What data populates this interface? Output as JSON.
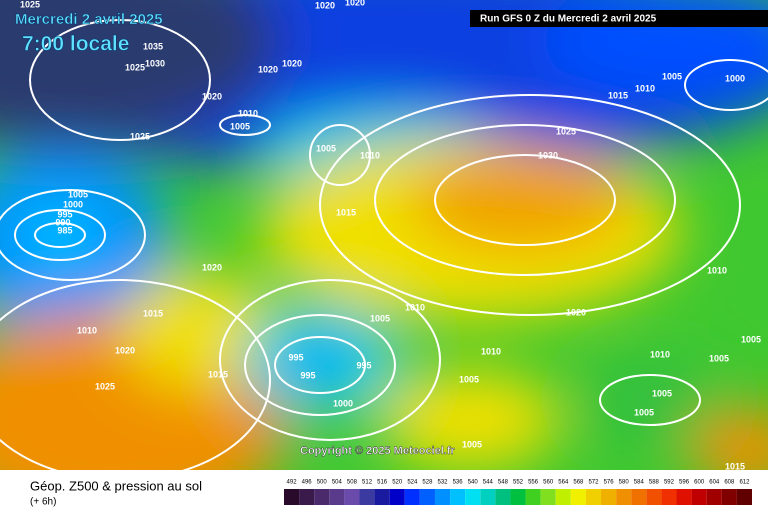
{
  "header": {
    "date": "Mercredi 2 avril 2025",
    "time": "7:00 locale",
    "run": "Run GFS 0 Z du Mercredi 2 avril 2025"
  },
  "map": {
    "isobar_labels": [
      1025,
      1020,
      1020,
      1035,
      1030,
      1025,
      1020,
      1020,
      1020,
      1010,
      1005,
      1025,
      1005,
      1010,
      1005,
      1000,
      995,
      990,
      985,
      1015,
      1020,
      1015,
      1010,
      1020,
      1025,
      1015,
      995,
      995,
      995,
      1000,
      1005,
      1010,
      1010,
      1005,
      1005,
      1020,
      1025,
      1030,
      1015,
      1010,
      1005,
      1000,
      1010,
      1005,
      1010,
      1005,
      1005,
      1005,
      1015
    ],
    "copyright": "Copyright © 2025 Meteociel.fr"
  },
  "legend": {
    "title": "Géop. Z500 & pression au sol",
    "lead_time": "(+ 6h)",
    "scale": [
      492,
      496,
      500,
      504,
      508,
      512,
      516,
      520,
      524,
      528,
      532,
      536,
      540,
      544,
      548,
      552,
      556,
      560,
      564,
      568,
      572,
      576,
      580,
      584,
      588,
      592,
      596,
      600,
      604,
      608,
      612
    ],
    "colors": [
      "#2a0a2a",
      "#3a1a4a",
      "#4a2a6a",
      "#5a3a8a",
      "#6a4aaa",
      "#3a3aa0",
      "#1a1aa0",
      "#0000c8",
      "#0030ff",
      "#0060ff",
      "#0090ff",
      "#00c0ff",
      "#00e0f0",
      "#00d0c0",
      "#00c080",
      "#00c040",
      "#40d020",
      "#80e020",
      "#c0f000",
      "#f0f000",
      "#f0d000",
      "#f0b000",
      "#f09000",
      "#f07000",
      "#f05000",
      "#f03000",
      "#e01000",
      "#c00000",
      "#a00000",
      "#800000",
      "#600000"
    ]
  }
}
